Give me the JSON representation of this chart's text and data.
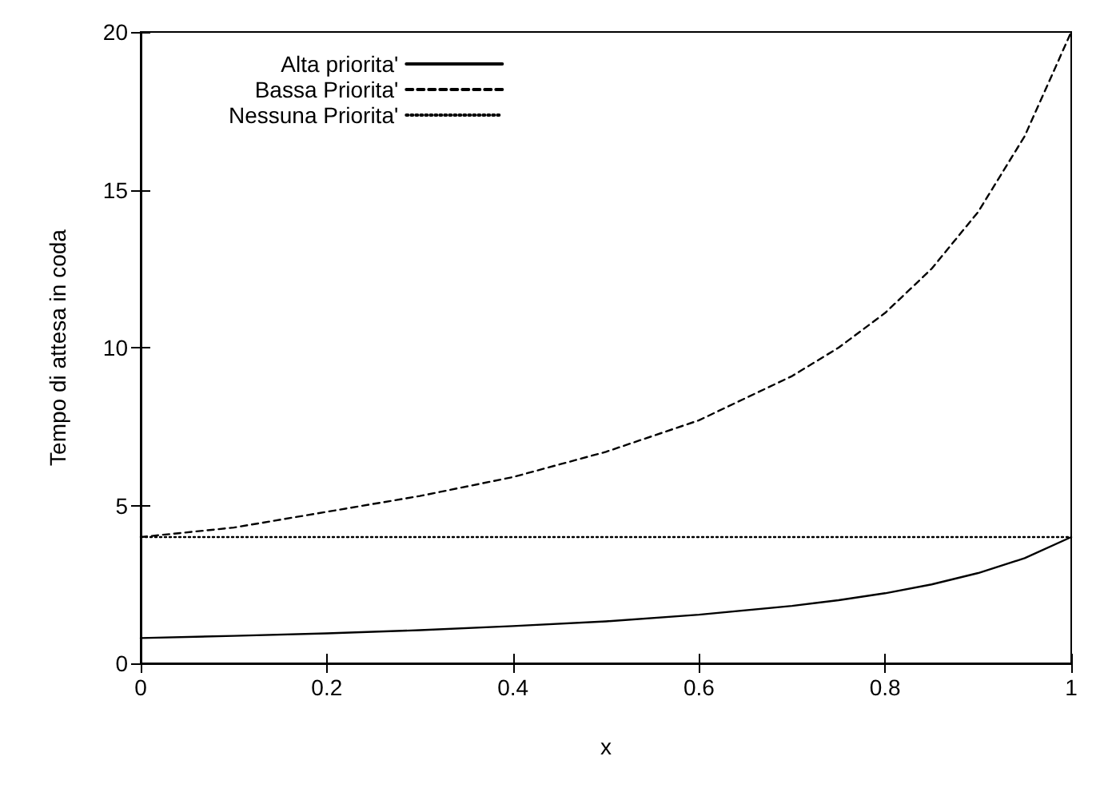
{
  "chart_data": {
    "type": "line",
    "xlabel": "x",
    "ylabel": "Tempo di attesa in coda",
    "x": [
      0,
      0.1,
      0.2,
      0.3,
      0.4,
      0.5,
      0.6,
      0.7,
      0.75,
      0.8,
      0.85,
      0.9,
      0.95,
      1
    ],
    "series": [
      {
        "name": "Alta priorita'",
        "color": "#000000",
        "line_style": "solid",
        "values": [
          0.8,
          0.87,
          0.95,
          1.05,
          1.18,
          1.33,
          1.54,
          1.82,
          2,
          2.22,
          2.5,
          2.86,
          3.33,
          4
        ]
      },
      {
        "name": "Bassa Priorita'",
        "color": "#000000",
        "line_style": "dashed",
        "values": [
          4,
          4.3,
          4.8,
          5.3,
          5.9,
          6.7,
          7.7,
          9.1,
          10,
          11.1,
          12.5,
          14.3,
          16.7,
          20
        ]
      },
      {
        "name": "Nessuna Priorita'",
        "color": "#000000",
        "line_style": "dotted",
        "values": [
          4,
          4,
          4,
          4,
          4,
          4,
          4,
          4,
          4,
          4,
          4,
          4,
          4,
          4
        ]
      }
    ],
    "xlim": [
      0,
      1
    ],
    "xticks": [
      0,
      0.2,
      0.4,
      0.6,
      0.8,
      1
    ],
    "ylim": [
      0,
      20
    ],
    "yticks": [
      0,
      5,
      10,
      15,
      20
    ],
    "grid": false,
    "legend": "top left",
    "marker": "none"
  }
}
